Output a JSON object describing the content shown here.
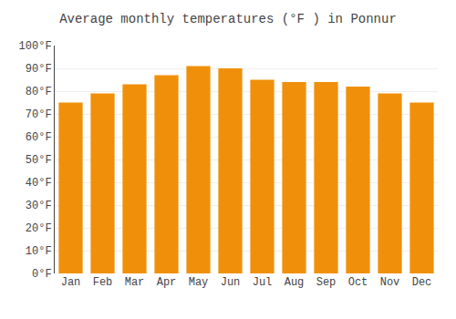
{
  "chart_data": {
    "type": "bar",
    "title": "Average monthly temperatures (°F ) in Ponnur",
    "categories": [
      "Jan",
      "Feb",
      "Mar",
      "Apr",
      "May",
      "Jun",
      "Jul",
      "Aug",
      "Sep",
      "Oct",
      "Nov",
      "Dec"
    ],
    "values": [
      75,
      79,
      83,
      87,
      91,
      90,
      85,
      84,
      84,
      82,
      79,
      75
    ],
    "color": "#F0900A",
    "ylim": [
      0,
      100
    ],
    "yticks": [
      {
        "value": 0,
        "label": "0°F"
      },
      {
        "value": 10,
        "label": "10°F"
      },
      {
        "value": 20,
        "label": "20°F"
      },
      {
        "value": 30,
        "label": "30°F"
      },
      {
        "value": 40,
        "label": "40°F"
      },
      {
        "value": 50,
        "label": "50°F"
      },
      {
        "value": 60,
        "label": "60°F"
      },
      {
        "value": 70,
        "label": "70°F"
      },
      {
        "value": 80,
        "label": "80°F"
      },
      {
        "value": 90,
        "label": "90°F"
      },
      {
        "value": 100,
        "label": "100°F"
      }
    ],
    "grid": true
  }
}
